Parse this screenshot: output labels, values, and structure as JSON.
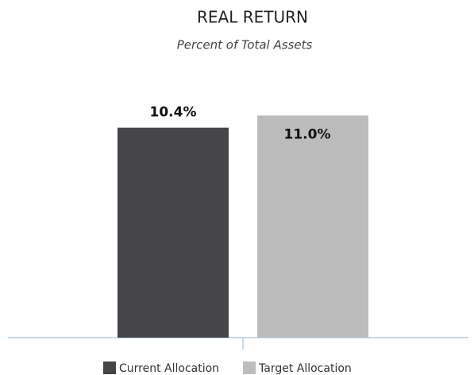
{
  "chart_data": {
    "type": "bar",
    "title": "REAL RETURN",
    "subtitle": "Percent of Total Assets",
    "categories": [
      null
    ],
    "series": [
      {
        "name": "Current Allocation",
        "color": "#464549",
        "values": [
          10.4
        ],
        "value_labels": [
          "10.4%"
        ]
      },
      {
        "name": "Target Allocation",
        "color": "#bcbcbc",
        "values": [
          11.0
        ],
        "value_labels": [
          "11.0%"
        ]
      }
    ],
    "ylim": [
      0,
      12
    ],
    "legend": "bottom"
  }
}
